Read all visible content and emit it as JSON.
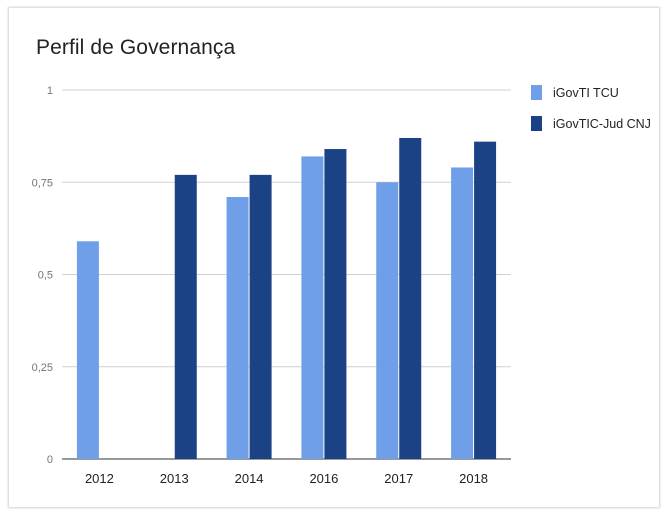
{
  "chart_data": {
    "type": "bar",
    "title": "Perfil de Governança",
    "xlabel": "",
    "ylabel": "",
    "categories": [
      "2012",
      "2013",
      "2014",
      "2016",
      "2017",
      "2018"
    ],
    "series": [
      {
        "name": "iGovTI TCU",
        "color": "#6f9fe8",
        "values": [
          0.59,
          null,
          0.71,
          0.82,
          0.75,
          0.79
        ]
      },
      {
        "name": "iGovTIC-Jud CNJ",
        "color": "#1c4286",
        "values": [
          null,
          0.77,
          0.77,
          0.84,
          0.87,
          0.86
        ]
      }
    ],
    "ylim": [
      0,
      1
    ],
    "yticks": [
      {
        "value": 0,
        "label": "0"
      },
      {
        "value": 0.25,
        "label": "0,25"
      },
      {
        "value": 0.5,
        "label": "0,5"
      },
      {
        "value": 0.75,
        "label": "0,75"
      },
      {
        "value": 1,
        "label": "1"
      }
    ],
    "grid": true,
    "legend_position": "right"
  }
}
